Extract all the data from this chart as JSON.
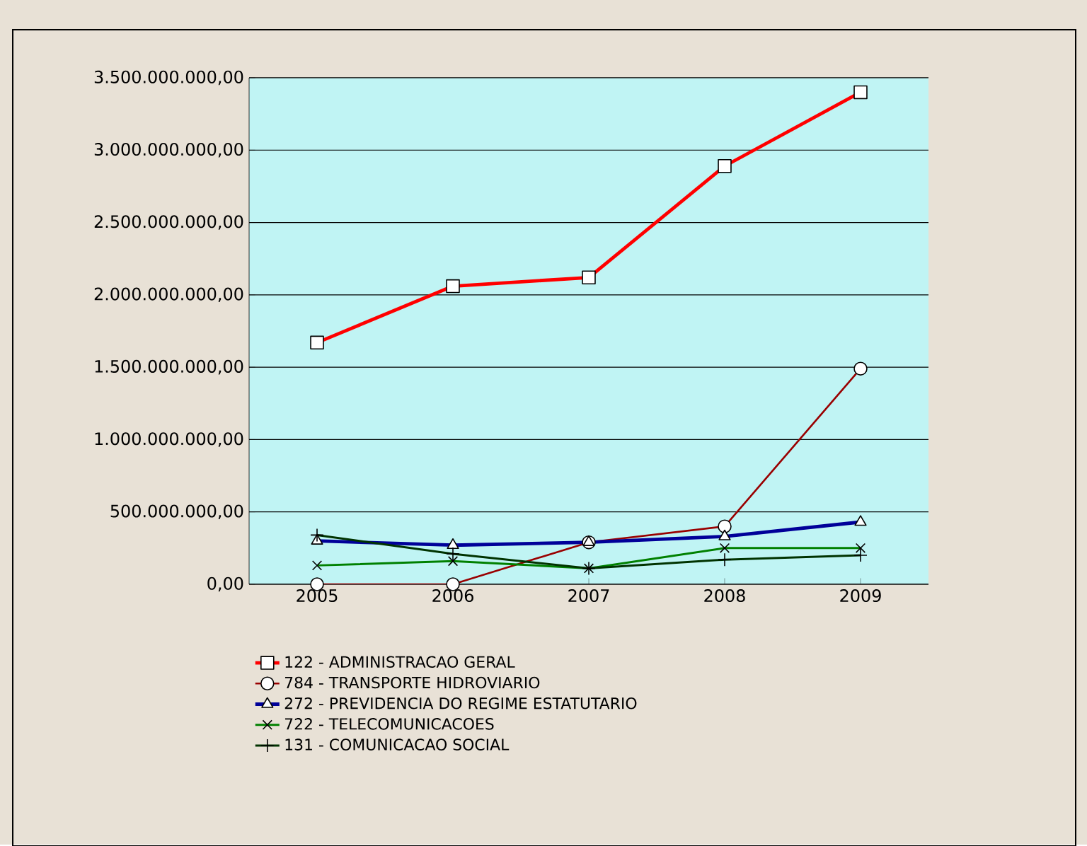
{
  "chart_data": {
    "type": "line",
    "categories": [
      "2005",
      "2006",
      "2007",
      "2008",
      "2009"
    ],
    "series": [
      {
        "name": "122 - ADMINISTRACAO GERAL",
        "color": "#ff0000",
        "marker": "square",
        "values": [
          1670000000,
          2060000000,
          2120000000,
          2890000000,
          3400000000
        ]
      },
      {
        "name": "784 - TRANSPORTE HIDROVIARIO",
        "color": "#990000",
        "marker": "circle",
        "values": [
          0,
          0,
          290000000,
          400000000,
          1490000000
        ]
      },
      {
        "name": "272 - PREVIDENCIA DO REGIME ESTATUTARIO",
        "color": "#000099",
        "marker": "triangle",
        "values": [
          300000000,
          270000000,
          290000000,
          330000000,
          430000000
        ]
      },
      {
        "name": "722 - TELECOMUNICACOES",
        "color": "#008000",
        "marker": "cross",
        "values": [
          130000000,
          160000000,
          110000000,
          250000000,
          250000000
        ]
      },
      {
        "name": "131 - COMUNICACAO SOCIAL",
        "color": "#003300",
        "marker": "plus",
        "values": [
          340000000,
          210000000,
          110000000,
          170000000,
          200000000
        ]
      }
    ],
    "ylim": [
      0,
      3500000000
    ],
    "yticks": [
      {
        "value": 0,
        "label": "0,00"
      },
      {
        "value": 500000000,
        "label": "500.000.000,00"
      },
      {
        "value": 1000000000,
        "label": "1.000.000.000,00"
      },
      {
        "value": 1500000000,
        "label": "1.500.000.000,00"
      },
      {
        "value": 2000000000,
        "label": "2.000.000.000,00"
      },
      {
        "value": 2500000000,
        "label": "2.500.000.000,00"
      },
      {
        "value": 3000000000,
        "label": "3.000.000.000,00"
      },
      {
        "value": 3500000000,
        "label": "3.500.000.000,00"
      }
    ],
    "grid": "y",
    "legend": "bottom"
  }
}
